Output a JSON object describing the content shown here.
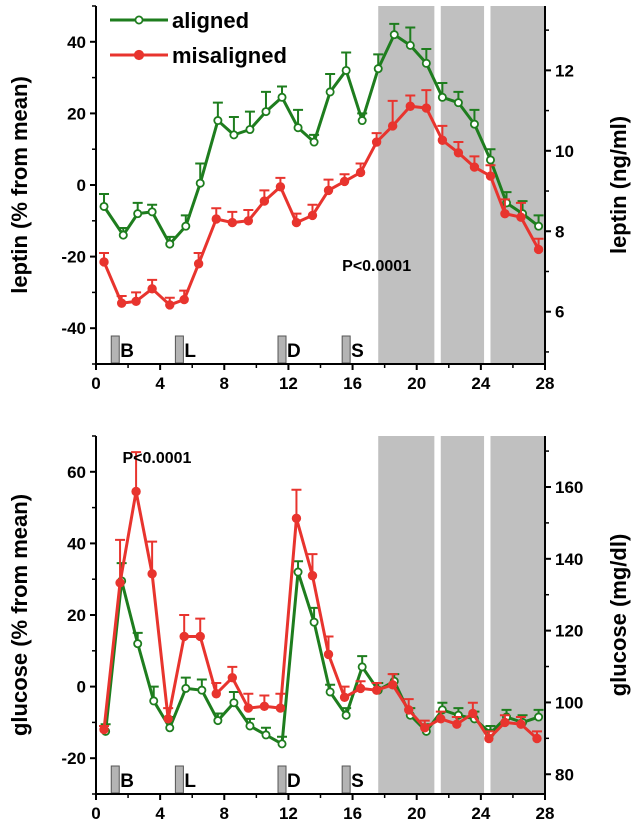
{
  "colors": {
    "aligned": "#1e7d1e",
    "misaligned": "#e8342e",
    "shade": "#c0c0c0",
    "meal_box": "#b4b4b4"
  },
  "chart_data": [
    {
      "type": "line",
      "id": "leptin",
      "xlabel": "",
      "ylabel": "leptin (% from mean)",
      "ylabel_right": "leptin (ng/ml)",
      "xlim": [
        0,
        28
      ],
      "ylim": [
        -50,
        50
      ],
      "y2lim": [
        4.7,
        13.6
      ],
      "xticks": [
        0,
        4,
        8,
        12,
        16,
        20,
        24,
        28
      ],
      "yticks": [
        -40,
        -20,
        0,
        20,
        40
      ],
      "y2ticks": [
        6,
        8,
        10,
        12
      ],
      "annotation": "P<0.0001",
      "annotation_pos": [
        17.5,
        -24
      ],
      "shaded_x": [
        [
          17.6,
          21.1
        ],
        [
          21.5,
          24.2
        ],
        [
          24.6,
          28
        ]
      ],
      "meals": [
        {
          "x": 1.2,
          "label": "B"
        },
        {
          "x": 5.2,
          "label": "L"
        },
        {
          "x": 11.6,
          "label": "D"
        },
        {
          "x": 15.6,
          "label": "S"
        }
      ],
      "legend": [
        "aligned",
        "misaligned"
      ],
      "series": [
        {
          "name": "aligned",
          "x": [
            0.5,
            1.7,
            2.6,
            3.5,
            4.6,
            5.6,
            6.5,
            7.6,
            8.6,
            9.6,
            10.6,
            11.6,
            12.6,
            13.6,
            14.6,
            15.6,
            16.6,
            17.6,
            18.6,
            19.6,
            20.6,
            21.6,
            22.6,
            23.6,
            24.6,
            25.6,
            26.6,
            27.6
          ],
          "values": [
            -6,
            -14,
            -8,
            -7.5,
            -16.5,
            -11.5,
            0.5,
            18,
            14,
            15.5,
            20.5,
            24.5,
            16,
            12,
            26,
            32,
            18,
            32.5,
            42,
            39,
            34,
            24.5,
            23,
            17,
            7,
            -5,
            -8,
            -11.5
          ],
          "err": [
            3.5,
            2,
            3,
            2,
            2,
            3,
            5.5,
            5,
            5,
            5,
            5.5,
            3,
            5,
            2,
            5,
            5,
            2,
            4,
            3,
            5,
            4,
            4,
            3,
            4,
            3,
            3,
            3.5,
            3
          ]
        },
        {
          "name": "misaligned",
          "x": [
            0.5,
            1.6,
            2.5,
            3.5,
            4.6,
            5.5,
            6.4,
            7.5,
            8.5,
            9.5,
            10.5,
            11.5,
            12.5,
            13.5,
            14.5,
            15.5,
            16.5,
            17.5,
            18.5,
            19.6,
            20.6,
            21.6,
            22.6,
            23.6,
            24.6,
            25.5,
            26.5,
            27.6
          ],
          "values": [
            -21.5,
            -33,
            -32.5,
            -29,
            -33.5,
            -32,
            -22,
            -9.5,
            -10.5,
            -10,
            -4.5,
            -0.5,
            -10.5,
            -8.5,
            -1.5,
            1,
            3.5,
            12,
            16.5,
            22,
            21.5,
            12.5,
            9,
            5,
            2.5,
            -8,
            -9,
            -18
          ],
          "err": [
            2.5,
            2,
            2.5,
            2.5,
            2,
            2.5,
            3,
            3,
            3,
            3,
            3,
            2.5,
            2.5,
            3,
            3,
            2,
            2.5,
            2.5,
            7,
            3,
            5,
            4,
            3,
            3,
            3,
            4,
            4,
            3
          ]
        }
      ]
    },
    {
      "type": "line",
      "id": "glucose",
      "xlabel": "",
      "ylabel": "glucose (% from mean)",
      "ylabel_right": "glucose (mg/dl)",
      "xlim": [
        0,
        28
      ],
      "ylim": [
        -30,
        70
      ],
      "y2lim": [
        74.5,
        174.2
      ],
      "xticks": [
        0,
        4,
        8,
        12,
        16,
        20,
        24,
        28
      ],
      "yticks": [
        -20,
        0,
        20,
        40,
        60
      ],
      "y2ticks": [
        80,
        100,
        120,
        140,
        160
      ],
      "annotation": "P<0.0001",
      "annotation_pos": [
        3.8,
        62.5
      ],
      "shaded_x": [
        [
          17.6,
          21.1
        ],
        [
          21.5,
          24.2
        ],
        [
          24.6,
          28
        ]
      ],
      "meals": [
        {
          "x": 1.2,
          "label": "B"
        },
        {
          "x": 5.2,
          "label": "L"
        },
        {
          "x": 11.6,
          "label": "D"
        },
        {
          "x": 15.6,
          "label": "S"
        }
      ],
      "legend": [],
      "series": [
        {
          "name": "aligned",
          "x": [
            0.6,
            1.6,
            2.6,
            3.6,
            4.6,
            5.6,
            6.6,
            7.6,
            8.6,
            9.6,
            10.6,
            11.6,
            12.6,
            13.6,
            14.6,
            15.6,
            16.6,
            17.6,
            18.6,
            19.6,
            20.6,
            21.6,
            22.6,
            23.6,
            24.6,
            25.6,
            26.6,
            27.6
          ],
          "values": [
            -12.5,
            29.5,
            12,
            -4,
            -11.5,
            -0.5,
            -1,
            -9.5,
            -4.5,
            -11,
            -13.5,
            -16,
            32,
            18,
            -1.5,
            -8,
            5.5,
            -1,
            1.5,
            -8,
            -12.5,
            -6.5,
            -8,
            -9,
            -13,
            -8.5,
            -10,
            -8.5
          ],
          "err": [
            2,
            5,
            3,
            4,
            3,
            3,
            3,
            2,
            3,
            2,
            2,
            2,
            3,
            4,
            2,
            2,
            3,
            2,
            2,
            2,
            2,
            2,
            2,
            2,
            2,
            2,
            2,
            2
          ]
        },
        {
          "name": "misaligned",
          "x": [
            0.5,
            1.5,
            2.5,
            3.5,
            4.5,
            5.5,
            6.5,
            7.5,
            8.5,
            9.5,
            10.5,
            11.5,
            12.5,
            13.5,
            14.5,
            15.5,
            16.5,
            17.5,
            18.5,
            19.5,
            20.5,
            21.5,
            22.5,
            23.5,
            24.5,
            25.5,
            26.5,
            27.5
          ],
          "values": [
            -12,
            29,
            54.5,
            31.5,
            -9,
            14,
            14,
            -2,
            2.5,
            -6,
            -5.5,
            -6,
            47,
            31,
            9,
            -3,
            -0.5,
            -1,
            0.5,
            -6.5,
            -11.5,
            -9,
            -10.5,
            -7.5,
            -14.5,
            -10,
            -10.5,
            -14.5
          ],
          "err": [
            1,
            12,
            11,
            9,
            3,
            6,
            5,
            3,
            3,
            4,
            3,
            4,
            8,
            6,
            5,
            3,
            2,
            2,
            3,
            3,
            2,
            2,
            2,
            3,
            2,
            2,
            2,
            2
          ]
        }
      ]
    }
  ]
}
